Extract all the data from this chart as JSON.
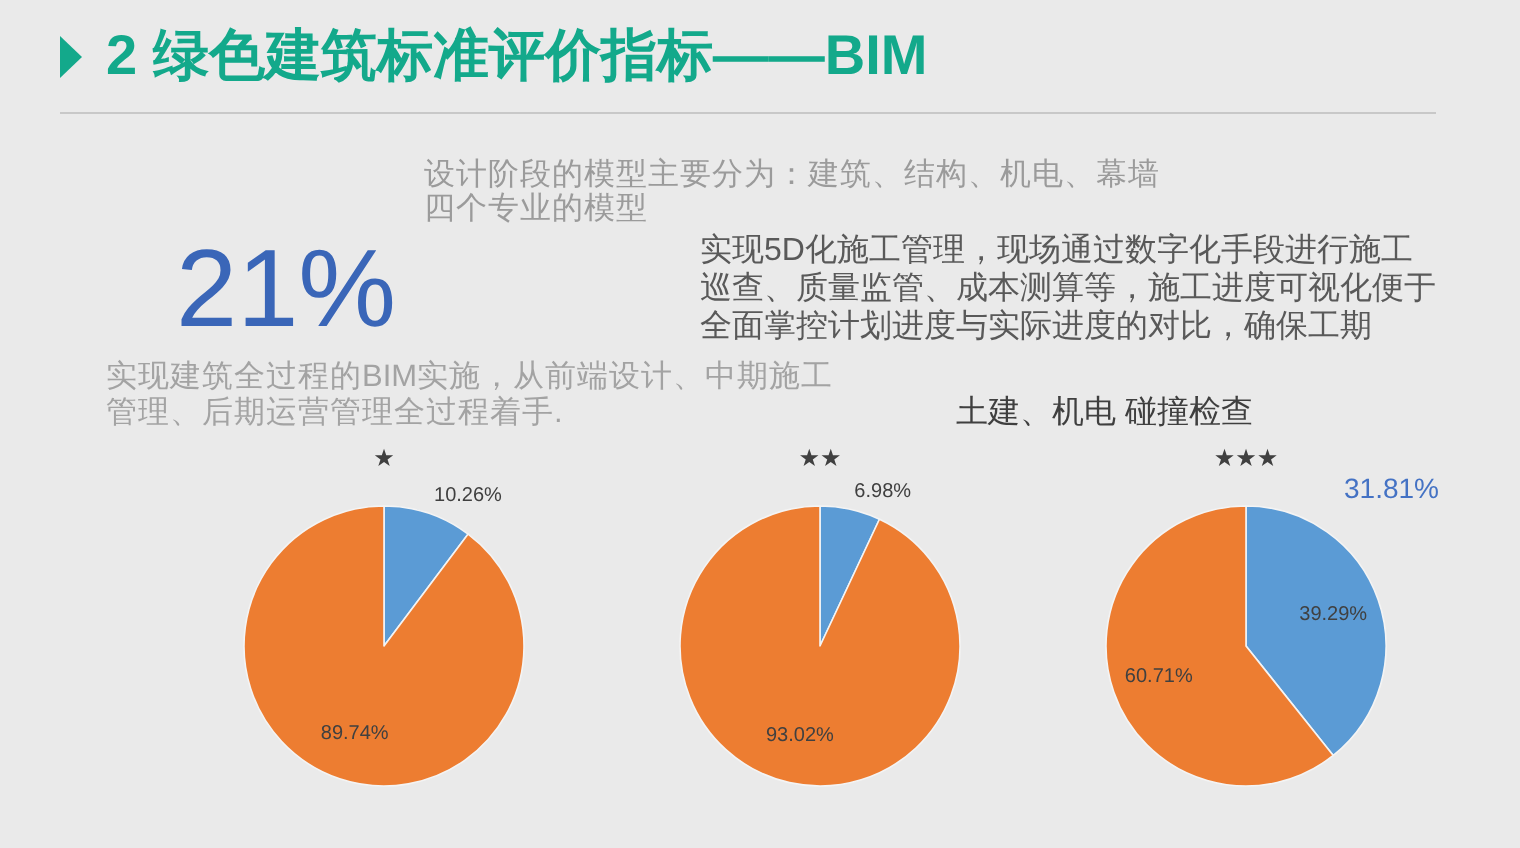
{
  "chart_data": [
    {
      "type": "other",
      "title": "2 绿色建筑标准评价指标——BIM",
      "annotations": [
        "设计阶段的模型主要分为：建筑、结构、机电、幕墙四个专业的模型",
        "21%",
        "实现建筑全过程的BIM实施，从前端设计、中期施工管理、后期运营管理全过程着手.",
        "实现5D化施工管理，现场通过数字化手段进行施工巡查、质量监管、成本测算等，施工进度可视化便于全面掌控计划进度与实际进度的对比，确保工期",
        "土建、机电 碰撞检查",
        "31.81%"
      ]
    },
    {
      "type": "pie",
      "title": "★",
      "categories": [
        null,
        null
      ],
      "values": [
        10.26,
        89.74
      ],
      "colors": [
        "#5b9bd5",
        "#ed7d31"
      ],
      "value_labels": [
        "10.26%",
        "89.74%"
      ]
    },
    {
      "type": "pie",
      "title": "★★",
      "categories": [
        null,
        null
      ],
      "values": [
        6.98,
        93.02
      ],
      "colors": [
        "#5b9bd5",
        "#ed7d31"
      ],
      "value_labels": [
        "6.98%",
        "93.02%"
      ]
    },
    {
      "type": "pie",
      "title": "★★★",
      "categories": [
        null,
        null
      ],
      "values": [
        39.29,
        60.71
      ],
      "colors": [
        "#5b9bd5",
        "#ed7d31"
      ],
      "value_labels": [
        "39.29%",
        "60.71%"
      ]
    }
  ]
}
